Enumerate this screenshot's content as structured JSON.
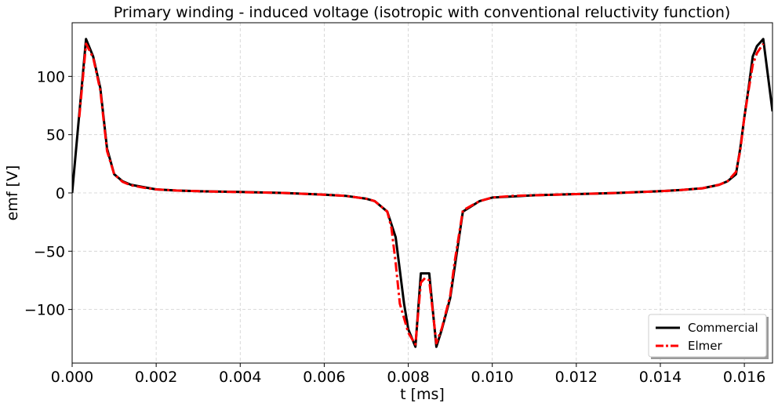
{
  "chart_data": {
    "type": "line",
    "title": "Primary winding - induced voltage (isotropic with conventional reluctivity function)",
    "xlabel": "t [ms]",
    "ylabel": "emf [V]",
    "xlim": [
      0.0,
      0.01667
    ],
    "ylim": [
      -146,
      146
    ],
    "xticks": [
      0.0,
      0.002,
      0.004,
      0.006,
      0.008,
      0.01,
      0.012,
      0.014,
      0.016
    ],
    "xtick_labels": [
      "0.000",
      "0.002",
      "0.004",
      "0.006",
      "0.008",
      "0.010",
      "0.012",
      "0.014",
      "0.016"
    ],
    "yticks": [
      -100,
      -50,
      0,
      50,
      100
    ],
    "ytick_labels": [
      "−100",
      "−50",
      "0",
      "50",
      "100"
    ],
    "grid": true,
    "legend_position": "bottom-right",
    "series": [
      {
        "name": "Commercial",
        "color": "#000000",
        "style": "solid",
        "x": [
          0.0,
          0.00033,
          0.0005,
          0.00067,
          0.00083,
          0.001,
          0.0012,
          0.0014,
          0.0017,
          0.002,
          0.0025,
          0.003,
          0.004,
          0.005,
          0.006,
          0.0065,
          0.007,
          0.0072,
          0.0075,
          0.0077,
          0.0079,
          0.008,
          0.00817,
          0.0083,
          0.0085,
          0.00867,
          0.0088,
          0.009,
          0.0091,
          0.0093,
          0.0097,
          0.01,
          0.0105,
          0.011,
          0.012,
          0.013,
          0.014,
          0.0145,
          0.015,
          0.0154,
          0.0156,
          0.0158,
          0.0159,
          0.016,
          0.0161,
          0.0162,
          0.0163,
          0.01645,
          0.01667
        ],
        "y": [
          0,
          132,
          117,
          90,
          38,
          16,
          10,
          7,
          5,
          3,
          2,
          1.5,
          0.8,
          0,
          -1.5,
          -2.5,
          -5,
          -7,
          -16,
          -38,
          -95,
          -117,
          -132,
          -69,
          -69,
          -132,
          -117,
          -90,
          -65,
          -16,
          -7,
          -4,
          -3,
          -2,
          -1,
          0,
          1.5,
          2.5,
          4,
          7,
          10,
          16,
          38,
          65,
          90,
          117,
          126,
          132,
          70
        ]
      },
      {
        "name": "Elmer",
        "color": "#ff0000",
        "style": "dashdot",
        "x": [
          0.00017,
          0.00033,
          0.0005,
          0.00067,
          0.00083,
          0.001,
          0.0012,
          0.0014,
          0.0017,
          0.002,
          0.0025,
          0.003,
          0.004,
          0.005,
          0.006,
          0.0065,
          0.007,
          0.0072,
          0.0075,
          0.0076,
          0.0077,
          0.0078,
          0.008,
          0.00817,
          0.0083,
          0.0084,
          0.0085,
          0.00867,
          0.0088,
          0.009,
          0.0091,
          0.0093,
          0.0097,
          0.01,
          0.0105,
          0.011,
          0.012,
          0.013,
          0.014,
          0.0145,
          0.015,
          0.0154,
          0.0156,
          0.0158,
          0.0159,
          0.016,
          0.0161,
          0.0162,
          0.0163,
          0.01645
        ],
        "y": [
          65,
          128,
          116,
          88,
          36,
          16,
          9.5,
          6.5,
          4.5,
          3,
          2,
          1.5,
          0.7,
          0,
          -1.5,
          -2.5,
          -5,
          -7,
          -16,
          -30,
          -60,
          -95,
          -120,
          -130,
          -77,
          -73,
          -75,
          -129,
          -116,
          -88,
          -60,
          -15,
          -7,
          -4,
          -2.5,
          -2,
          -1,
          0,
          1.5,
          2.5,
          4,
          7,
          10,
          18,
          36,
          65,
          88,
          110,
          120,
          128
        ]
      }
    ]
  }
}
